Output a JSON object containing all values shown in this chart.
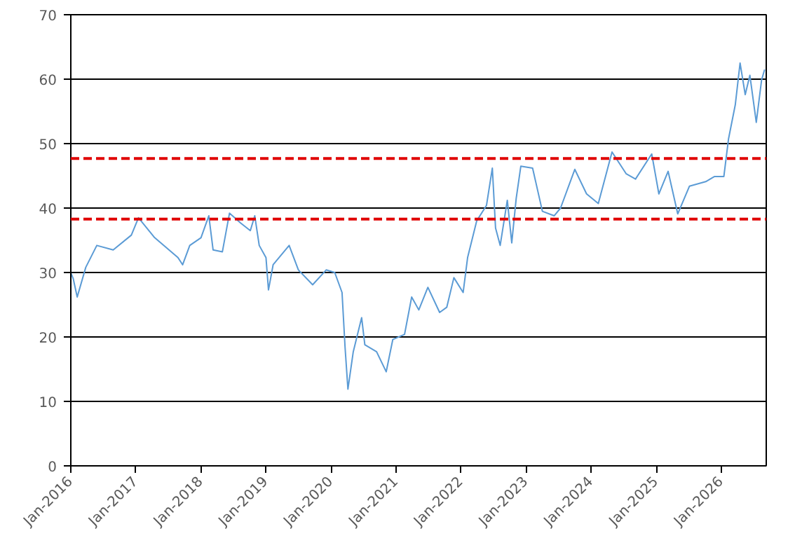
{
  "chart_data": {
    "type": "line",
    "x": [
      "2016-01-01",
      "2016-01-15",
      "2016-02-06",
      "2016-03-25",
      "2016-05-26",
      "2016-08-26",
      "2016-12-06",
      "2017-01-15",
      "2017-04-16",
      "2017-08-25",
      "2017-09-20",
      "2017-10-30",
      "2018-01-01",
      "2018-02-14",
      "2018-03-10",
      "2018-05-01",
      "2018-06-10",
      "2018-08-11",
      "2018-10-05",
      "2018-10-30",
      "2018-11-24",
      "2019-01-01",
      "2019-01-15",
      "2019-02-10",
      "2019-05-11",
      "2019-07-02",
      "2019-09-20",
      "2019-12-05",
      "2020-01-22",
      "2020-03-03",
      "2020-03-20",
      "2020-04-05",
      "2020-05-05",
      "2020-06-21",
      "2020-07-09",
      "2020-09-13",
      "2020-11-06",
      "2020-12-13",
      "2021-02-17",
      "2021-03-29",
      "2021-05-08",
      "2021-06-28",
      "2021-09-02",
      "2021-10-12",
      "2021-11-21",
      "2022-01-12",
      "2022-02-06",
      "2022-03-29",
      "2022-05-23",
      "2022-06-25",
      "2022-07-13",
      "2022-08-08",
      "2022-09-17",
      "2022-10-12",
      "2022-11-06",
      "2022-12-02",
      "2023-02-06",
      "2023-04-02",
      "2023-06-07",
      "2023-07-13",
      "2023-10-01",
      "2023-12-06",
      "2024-02-10",
      "2024-04-27",
      "2024-07-16",
      "2024-09-06",
      "2024-12-06",
      "2025-01-15",
      "2025-03-08",
      "2025-05-01",
      "2025-07-06",
      "2025-10-05",
      "2025-11-24",
      "2026-01-15",
      "2026-02-10",
      "2026-03-20",
      "2026-04-16",
      "2026-05-15",
      "2026-06-10",
      "2026-07-16",
      "2026-08-15",
      "2026-09-01"
    ],
    "series": [
      {
        "color": "#5b9bd5",
        "values": [
          30,
          29,
          26.2,
          30.8,
          34.2,
          33.5,
          35.8,
          38.5,
          35.4,
          32.3,
          31.2,
          34.2,
          35.4,
          38.8,
          33.5,
          33.2,
          39.2,
          37.7,
          36.5,
          38.8,
          34.2,
          32.3,
          27.3,
          31.2,
          34.2,
          30.4,
          28.1,
          30.4,
          30,
          26.9,
          18.4,
          11.9,
          17.7,
          23,
          18.8,
          17.7,
          14.6,
          19.6,
          20.4,
          26.2,
          24.2,
          27.7,
          23.8,
          24.6,
          29.2,
          26.9,
          32.3,
          38,
          40.4,
          46.2,
          36.9,
          34.2,
          41.2,
          34.6,
          41.5,
          46.5,
          46.2,
          39.5,
          38.8,
          40,
          46,
          42.2,
          40.7,
          48.7,
          45.3,
          44.5,
          48.4,
          42.2,
          45.7,
          39.1,
          43.4,
          44.1,
          44.9,
          44.9,
          50.7,
          56,
          62.5,
          57.6,
          60.6,
          53.3,
          59.9,
          61.5
        ]
      }
    ],
    "xlim": [
      "2016-01-01",
      "2026-09-10"
    ],
    "xticks": [
      {
        "value": "2016-01-01",
        "label": "Jan-2016"
      },
      {
        "value": "2017-01-01",
        "label": "Jan-2017"
      },
      {
        "value": "2018-01-01",
        "label": "Jan-2018"
      },
      {
        "value": "2019-01-01",
        "label": "Jan-2019"
      },
      {
        "value": "2020-01-01",
        "label": "Jan-2020"
      },
      {
        "value": "2021-01-01",
        "label": "Jan-2021"
      },
      {
        "value": "2022-01-01",
        "label": "Jan-2022"
      },
      {
        "value": "2023-01-01",
        "label": "Jan-2023"
      },
      {
        "value": "2024-01-01",
        "label": "Jan-2024"
      },
      {
        "value": "2025-01-01",
        "label": "Jan-2025"
      },
      {
        "value": "2026-01-01",
        "label": "Jan-2026"
      }
    ],
    "ylim": [
      0,
      70
    ],
    "yticks": [
      0,
      10,
      20,
      30,
      40,
      50,
      60,
      70
    ],
    "ref_lines": [
      {
        "axis": "y",
        "value": 47.7,
        "color": "#e00000",
        "line_style": "dashed"
      },
      {
        "axis": "y",
        "value": 38.3,
        "color": "#e00000",
        "line_style": "dashed"
      }
    ],
    "grid": "y",
    "marker": "none",
    "line_style": "solid"
  }
}
